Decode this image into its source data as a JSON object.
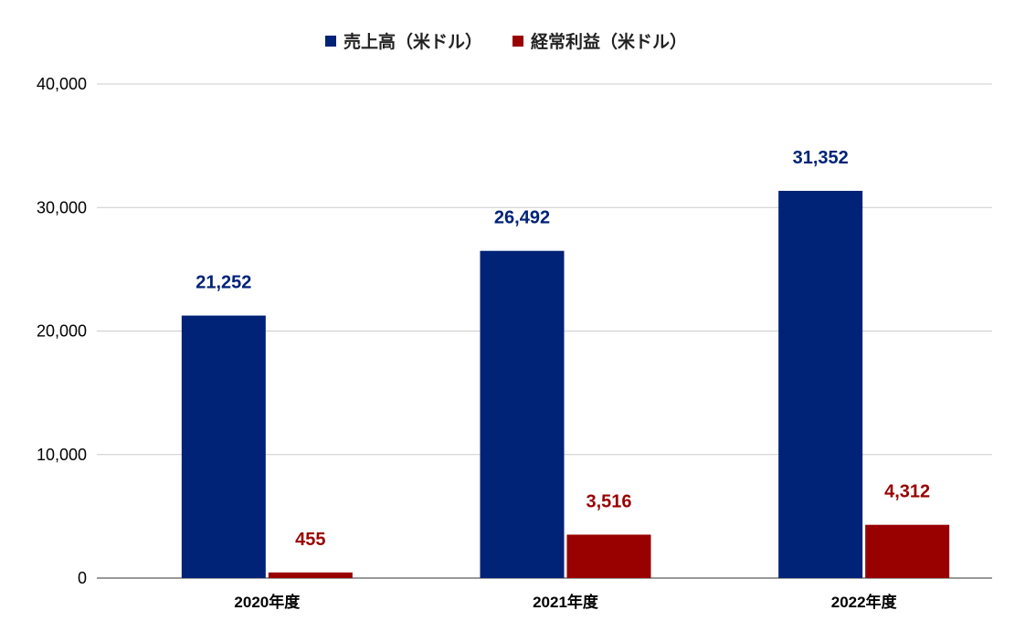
{
  "chart_data": {
    "type": "bar",
    "categories": [
      "2020年度",
      "2021年度",
      "2022年度"
    ],
    "series": [
      {
        "name": "売上高（米ドル）",
        "values": [
          21252,
          26492,
          31352
        ],
        "labels": [
          "21,252",
          "26,492",
          "31,352"
        ],
        "color": "#002277"
      },
      {
        "name": "経常利益（米ドル）",
        "values": [
          455,
          3516,
          4312
        ],
        "labels": [
          "455",
          "3,516",
          "4,312"
        ],
        "color": "#990000"
      }
    ],
    "ylim": [
      0,
      40000
    ],
    "yticks": [
      0,
      10000,
      20000,
      30000,
      40000
    ],
    "ytick_labels": [
      "0",
      "10,000",
      "20,000",
      "30,000",
      "40,000"
    ],
    "grid": true,
    "legend_position": "top-center",
    "title": "",
    "xlabel": "",
    "ylabel": ""
  }
}
